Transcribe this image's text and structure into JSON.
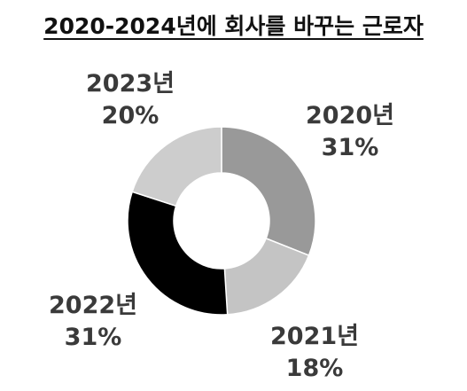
{
  "chart_data": {
    "type": "pie",
    "title": "2020-2024년에 회사를 바꾸는 근로자",
    "donut": true,
    "categories": [
      "2020년",
      "2021년",
      "2022년",
      "2023년"
    ],
    "values": [
      31,
      18,
      31,
      20
    ],
    "value_labels": [
      "31%",
      "18%",
      "31%",
      "20%"
    ],
    "colors": [
      "#999999",
      "#c4c4c4",
      "#000000",
      "#cdcdcd"
    ],
    "start_angle_deg": 0,
    "direction": "clockwise"
  }
}
